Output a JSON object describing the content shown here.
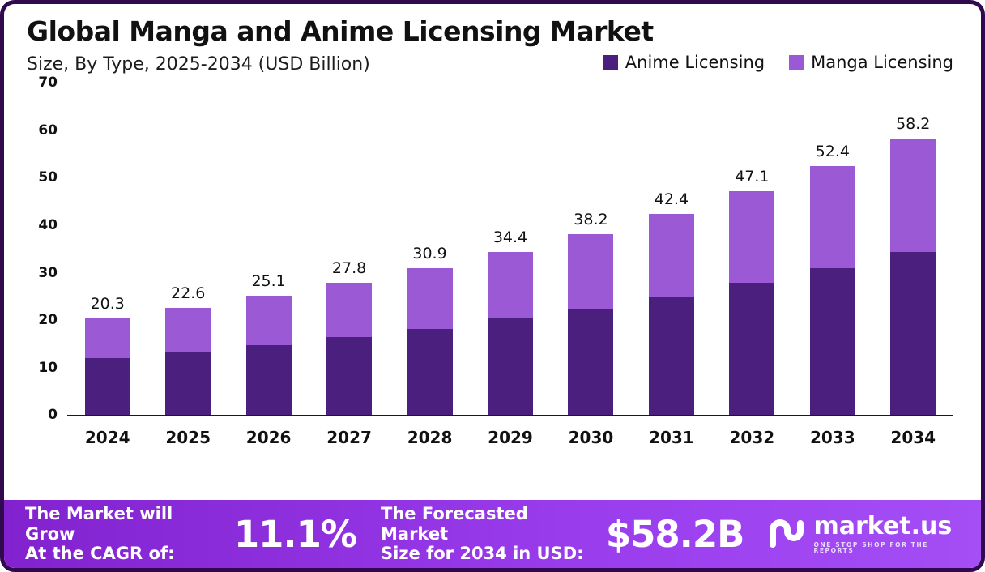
{
  "title": "Global Manga and Anime Licensing Market",
  "subtitle": "Size, By Type, 2025-2034 (USD Billion)",
  "legend": [
    {
      "label": "Anime Licensing",
      "color": "#4a1f7e"
    },
    {
      "label": "Manga Licensing",
      "color": "#9c59d6"
    }
  ],
  "chart_data": {
    "type": "bar",
    "stacked": true,
    "title": "Global Manga and Anime Licensing Market Size, By Type, 2025-2034 (USD Billion)",
    "categories": [
      "2024",
      "2025",
      "2026",
      "2027",
      "2028",
      "2029",
      "2030",
      "2031",
      "2032",
      "2033",
      "2034"
    ],
    "series": [
      {
        "name": "Anime Licensing",
        "color": "#4a1f7e",
        "values": [
          12.0,
          13.3,
          14.8,
          16.4,
          18.2,
          20.3,
          22.5,
          25.0,
          27.8,
          30.9,
          34.3
        ]
      },
      {
        "name": "Manga Licensing",
        "color": "#9c59d6",
        "values": [
          8.3,
          9.3,
          10.3,
          11.4,
          12.7,
          14.1,
          15.7,
          17.4,
          19.3,
          21.5,
          23.9
        ]
      }
    ],
    "totals": [
      20.3,
      22.6,
      25.1,
      27.8,
      30.9,
      34.4,
      38.2,
      42.4,
      47.1,
      52.4,
      58.2
    ],
    "xlabel": "",
    "ylabel": "",
    "ylim": [
      0,
      70
    ],
    "yticks": [
      0,
      10,
      20,
      30,
      40,
      50,
      60,
      70
    ],
    "grid": false,
    "legend_position": "top-right"
  },
  "footer": {
    "cagr_label_line1": "The Market will Grow",
    "cagr_label_line2": "At the CAGR of:",
    "cagr_value": "11.1%",
    "forecast_label_line1": "The Forecasted Market",
    "forecast_label_line2": "Size for 2034 in USD:",
    "forecast_value": "$58.2B",
    "brand": "market.us",
    "brand_tagline": "ONE STOP SHOP FOR THE REPORTS"
  }
}
